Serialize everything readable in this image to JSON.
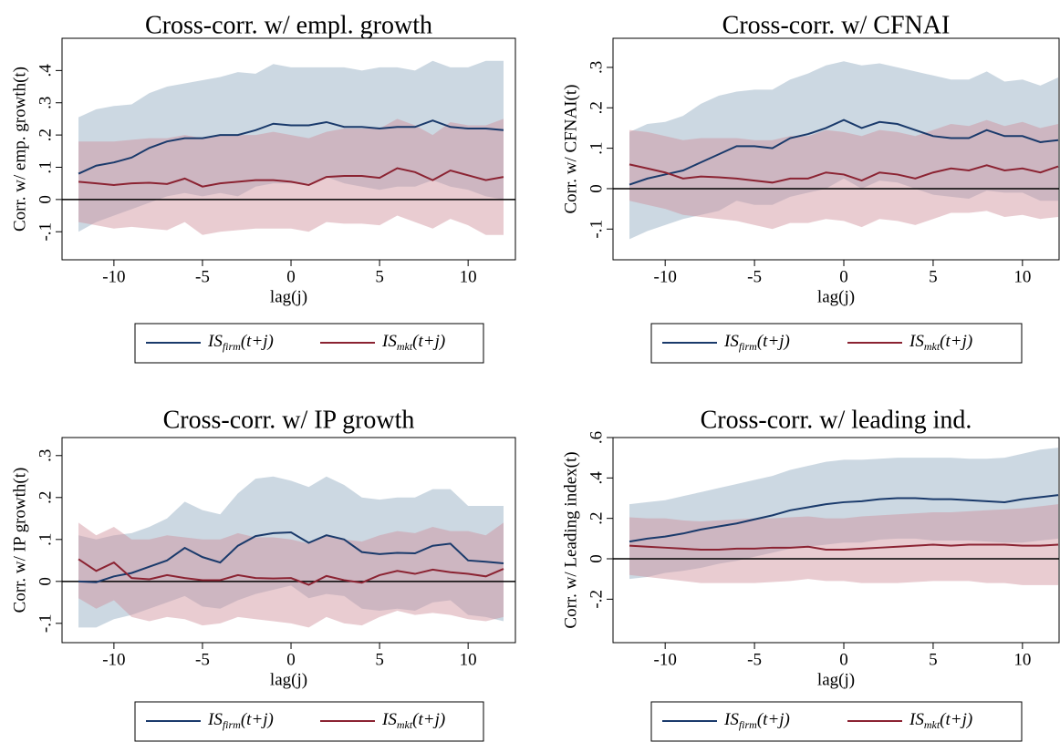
{
  "chart_data": [
    {
      "type": "line",
      "title": "Cross-corr. w/ empl. growth",
      "xlabel": "lag(j)",
      "ylabel": "Corr. w/ emp. growth(t)",
      "x": [
        -12,
        -11,
        -10,
        -9,
        -8,
        -7,
        -6,
        -5,
        -4,
        -3,
        -2,
        -1,
        0,
        1,
        2,
        3,
        4,
        5,
        6,
        7,
        8,
        9,
        10,
        11,
        12
      ],
      "xlim": [
        -12.93,
        12.67
      ],
      "xticks": [
        -10,
        -5,
        0,
        5,
        10
      ],
      "ylim": [
        -0.187,
        0.5
      ],
      "yticks": [
        {
          "value": -0.1,
          "label": "-.1"
        },
        0,
        {
          "value": 0.1,
          "label": ".1"
        },
        {
          "value": 0.2,
          "label": ".2"
        },
        {
          "value": 0.3,
          "label": ".3"
        },
        {
          "value": 0.4,
          "label": ".4"
        }
      ],
      "reference_line": 0,
      "series": [
        {
          "label_main": "IS",
          "label_sub": "firm",
          "label_arg": "(t+j)",
          "color": "#1a3a6b",
          "band_color": "#8ea8be",
          "values": [
            0.08,
            0.105,
            0.115,
            0.13,
            0.16,
            0.18,
            0.19,
            0.19,
            0.2,
            0.2,
            0.215,
            0.235,
            0.23,
            0.23,
            0.24,
            0.225,
            0.225,
            0.22,
            0.225,
            0.225,
            0.245,
            0.225,
            0.22,
            0.22,
            0.215
          ],
          "upper": [
            0.255,
            0.28,
            0.29,
            0.295,
            0.33,
            0.35,
            0.36,
            0.37,
            0.38,
            0.395,
            0.39,
            0.42,
            0.41,
            0.41,
            0.41,
            0.41,
            0.4,
            0.41,
            0.41,
            0.4,
            0.43,
            0.41,
            0.41,
            0.43,
            0.43
          ],
          "lower": [
            -0.1,
            -0.07,
            -0.05,
            -0.03,
            -0.01,
            0.01,
            0.02,
            0.01,
            0.02,
            0.01,
            0.04,
            0.05,
            0.05,
            0.05,
            0.07,
            0.05,
            0.04,
            0.03,
            0.04,
            0.04,
            0.06,
            0.04,
            0.03,
            0.01,
            0.0
          ]
        },
        {
          "label_main": "IS",
          "label_sub": "mkt",
          "label_arg": "(t+j)",
          "color": "#8b2332",
          "band_color": "#cf8f98",
          "values": [
            0.055,
            0.05,
            0.045,
            0.05,
            0.052,
            0.048,
            0.065,
            0.04,
            0.05,
            0.055,
            0.06,
            0.06,
            0.055,
            0.045,
            0.07,
            0.073,
            0.073,
            0.067,
            0.097,
            0.085,
            0.06,
            0.09,
            0.075,
            0.06,
            0.07
          ],
          "upper": [
            0.18,
            0.18,
            0.18,
            0.185,
            0.19,
            0.19,
            0.2,
            0.19,
            0.2,
            0.2,
            0.2,
            0.21,
            0.2,
            0.19,
            0.21,
            0.22,
            0.22,
            0.22,
            0.25,
            0.23,
            0.2,
            0.24,
            0.23,
            0.23,
            0.25
          ],
          "lower": [
            -0.07,
            -0.08,
            -0.09,
            -0.085,
            -0.09,
            -0.095,
            -0.07,
            -0.11,
            -0.1,
            -0.095,
            -0.09,
            -0.09,
            -0.09,
            -0.1,
            -0.07,
            -0.075,
            -0.075,
            -0.08,
            -0.05,
            -0.07,
            -0.09,
            -0.06,
            -0.08,
            -0.11,
            -0.11
          ]
        }
      ]
    },
    {
      "type": "line",
      "title": "Cross-corr. w/ CFNAI",
      "xlabel": "lag(j)",
      "ylabel": "Corr. w/ CFNAI(t)",
      "x": [
        -12,
        -11,
        -10,
        -9,
        -8,
        -7,
        -6,
        -5,
        -4,
        -3,
        -2,
        -1,
        0,
        1,
        2,
        3,
        4,
        5,
        6,
        7,
        8,
        9,
        10,
        11,
        12
      ],
      "xlim": [
        -12.92,
        12.05
      ],
      "xticks": [
        -10,
        -5,
        0,
        5,
        10
      ],
      "ylim": [
        -0.176,
        0.372
      ],
      "yticks": [
        {
          "value": -0.1,
          "label": "-.1"
        },
        0,
        {
          "value": 0.1,
          "label": ".1"
        },
        {
          "value": 0.2,
          "label": ".2"
        },
        {
          "value": 0.3,
          "label": ".3"
        }
      ],
      "reference_line": 0,
      "series": [
        {
          "label_main": "IS",
          "label_sub": "firm",
          "label_arg": "(t+j)",
          "color": "#1a3a6b",
          "band_color": "#8ea8be",
          "values": [
            0.01,
            0.025,
            0.035,
            0.045,
            0.065,
            0.085,
            0.105,
            0.105,
            0.1,
            0.125,
            0.135,
            0.15,
            0.17,
            0.15,
            0.165,
            0.16,
            0.145,
            0.13,
            0.125,
            0.125,
            0.145,
            0.13,
            0.13,
            0.115,
            0.12
          ],
          "upper": [
            0.14,
            0.16,
            0.165,
            0.18,
            0.21,
            0.23,
            0.24,
            0.245,
            0.245,
            0.27,
            0.285,
            0.305,
            0.315,
            0.305,
            0.31,
            0.3,
            0.29,
            0.28,
            0.27,
            0.27,
            0.29,
            0.265,
            0.27,
            0.255,
            0.275
          ],
          "lower": [
            -0.125,
            -0.105,
            -0.09,
            -0.075,
            -0.065,
            -0.055,
            -0.03,
            -0.04,
            -0.04,
            -0.02,
            -0.01,
            0.0,
            0.025,
            0.0,
            0.02,
            0.015,
            0.0,
            -0.015,
            -0.02,
            -0.025,
            -0.005,
            -0.01,
            -0.01,
            -0.03,
            -0.03
          ]
        },
        {
          "label_main": "IS",
          "label_sub": "mkt",
          "label_arg": "(t+j)",
          "color": "#8b2332",
          "band_color": "#cf8f98",
          "values": [
            0.06,
            0.05,
            0.04,
            0.025,
            0.03,
            0.028,
            0.025,
            0.02,
            0.015,
            0.025,
            0.025,
            0.04,
            0.035,
            0.02,
            0.04,
            0.035,
            0.025,
            0.04,
            0.05,
            0.045,
            0.058,
            0.045,
            0.05,
            0.04,
            0.055
          ],
          "upper": [
            0.145,
            0.14,
            0.13,
            0.12,
            0.125,
            0.125,
            0.125,
            0.12,
            0.12,
            0.13,
            0.13,
            0.145,
            0.14,
            0.13,
            0.145,
            0.14,
            0.13,
            0.145,
            0.16,
            0.155,
            0.17,
            0.155,
            0.165,
            0.15,
            0.16
          ],
          "lower": [
            -0.03,
            -0.04,
            -0.05,
            -0.065,
            -0.07,
            -0.075,
            -0.08,
            -0.09,
            -0.1,
            -0.085,
            -0.085,
            -0.075,
            -0.08,
            -0.095,
            -0.075,
            -0.08,
            -0.09,
            -0.075,
            -0.06,
            -0.06,
            -0.055,
            -0.07,
            -0.065,
            -0.075,
            -0.07
          ]
        }
      ]
    },
    {
      "type": "line",
      "title": "Cross-corr. w/ IP growth",
      "xlabel": "lag(j)",
      "ylabel": "Corr. w/ IP growth(t)",
      "x": [
        -12,
        -11,
        -10,
        -9,
        -8,
        -7,
        -6,
        -5,
        -4,
        -3,
        -2,
        -1,
        0,
        1,
        2,
        3,
        4,
        5,
        6,
        7,
        8,
        9,
        10,
        11,
        12
      ],
      "xlim": [
        -12.93,
        12.67
      ],
      "xticks": [
        -10,
        -5,
        0,
        5,
        10
      ],
      "ylim": [
        -0.146,
        0.343
      ],
      "yticks": [
        {
          "value": -0.1,
          "label": "-.1"
        },
        0,
        {
          "value": 0.1,
          "label": ".1"
        },
        {
          "value": 0.2,
          "label": ".2"
        },
        {
          "value": 0.3,
          "label": ".3"
        }
      ],
      "reference_line": 0,
      "series": [
        {
          "label_main": "IS",
          "label_sub": "firm",
          "label_arg": "(t+j)",
          "color": "#1a3a6b",
          "band_color": "#8ea8be",
          "values": [
            0,
            -0.002,
            0.012,
            0.02,
            0.035,
            0.05,
            0.08,
            0.058,
            0.045,
            0.085,
            0.108,
            0.115,
            0.117,
            0.092,
            0.11,
            0.1,
            0.07,
            0.065,
            0.068,
            0.067,
            0.085,
            0.09,
            0.05,
            0.047,
            0.043
          ],
          "upper": [
            0.11,
            0.1,
            0.11,
            0.115,
            0.13,
            0.15,
            0.19,
            0.17,
            0.16,
            0.21,
            0.245,
            0.25,
            0.24,
            0.225,
            0.25,
            0.23,
            0.2,
            0.195,
            0.2,
            0.2,
            0.22,
            0.22,
            0.18,
            0.18,
            0.18
          ],
          "lower": [
            -0.11,
            -0.11,
            -0.09,
            -0.08,
            -0.065,
            -0.05,
            -0.035,
            -0.06,
            -0.065,
            -0.045,
            -0.03,
            -0.02,
            -0.01,
            -0.04,
            -0.03,
            -0.035,
            -0.065,
            -0.07,
            -0.065,
            -0.07,
            -0.05,
            -0.045,
            -0.08,
            -0.085,
            -0.095
          ]
        },
        {
          "label_main": "IS",
          "label_sub": "mkt",
          "label_arg": "(t+j)",
          "color": "#8b2332",
          "band_color": "#cf8f98",
          "values": [
            0.053,
            0.025,
            0.045,
            0.008,
            0.005,
            0.015,
            0.008,
            0.003,
            0.003,
            0.015,
            0.008,
            0.007,
            0.008,
            -0.008,
            0.013,
            0.003,
            -0.003,
            0.015,
            0.025,
            0.018,
            0.028,
            0.022,
            0.018,
            0.012,
            0.03
          ],
          "upper": [
            0.14,
            0.11,
            0.13,
            0.1,
            0.1,
            0.11,
            0.105,
            0.1,
            0.1,
            0.115,
            0.105,
            0.105,
            0.1,
            0.09,
            0.11,
            0.1,
            0.095,
            0.11,
            0.12,
            0.115,
            0.13,
            0.12,
            0.12,
            0.11,
            0.14
          ],
          "lower": [
            -0.04,
            -0.065,
            -0.045,
            -0.085,
            -0.095,
            -0.085,
            -0.09,
            -0.105,
            -0.1,
            -0.085,
            -0.09,
            -0.095,
            -0.1,
            -0.11,
            -0.085,
            -0.1,
            -0.105,
            -0.085,
            -0.07,
            -0.08,
            -0.075,
            -0.08,
            -0.09,
            -0.095,
            -0.085
          ]
        }
      ]
    },
    {
      "type": "line",
      "title": "Cross-corr. w/ leading ind.",
      "xlabel": "lag(j)",
      "ylabel": "Corr. w/ Leading index(t)",
      "x": [
        -12,
        -11,
        -10,
        -9,
        -8,
        -7,
        -6,
        -5,
        -4,
        -3,
        -2,
        -1,
        0,
        1,
        2,
        3,
        4,
        5,
        6,
        7,
        8,
        9,
        10,
        11,
        12
      ],
      "xlim": [
        -12.92,
        12.05
      ],
      "xticks": [
        -10,
        -5,
        0,
        5,
        10
      ],
      "ylim": [
        -0.415,
        0.6
      ],
      "yticks": [
        {
          "value": -0.2,
          "label": "-.2"
        },
        0,
        {
          "value": 0.2,
          "label": ".2"
        },
        {
          "value": 0.4,
          "label": ".4"
        },
        {
          "value": 0.6,
          "label": ".6"
        }
      ],
      "reference_line": 0,
      "series": [
        {
          "label_main": "IS",
          "label_sub": "firm",
          "label_arg": "(t+j)",
          "color": "#1a3a6b",
          "band_color": "#8ea8be",
          "values": [
            0.085,
            0.1,
            0.11,
            0.125,
            0.145,
            0.16,
            0.175,
            0.195,
            0.215,
            0.24,
            0.255,
            0.27,
            0.28,
            0.285,
            0.295,
            0.3,
            0.3,
            0.295,
            0.295,
            0.29,
            0.285,
            0.28,
            0.295,
            0.305,
            0.315
          ],
          "upper": [
            0.27,
            0.28,
            0.29,
            0.31,
            0.33,
            0.35,
            0.37,
            0.39,
            0.41,
            0.44,
            0.46,
            0.48,
            0.49,
            0.49,
            0.495,
            0.5,
            0.5,
            0.5,
            0.5,
            0.495,
            0.495,
            0.5,
            0.52,
            0.54,
            0.55
          ],
          "lower": [
            -0.1,
            -0.09,
            -0.07,
            -0.06,
            -0.045,
            -0.025,
            -0.01,
            0.01,
            0.03,
            0.05,
            0.06,
            0.07,
            0.08,
            0.08,
            0.095,
            0.1,
            0.1,
            0.09,
            0.09,
            0.09,
            0.085,
            0.08,
            0.08,
            0.09,
            0.1
          ]
        },
        {
          "label_main": "IS",
          "label_sub": "mkt",
          "label_arg": "(t+j)",
          "color": "#8b2332",
          "band_color": "#cf8f98",
          "values": [
            0.065,
            0.06,
            0.055,
            0.05,
            0.045,
            0.045,
            0.05,
            0.05,
            0.055,
            0.055,
            0.06,
            0.045,
            0.045,
            0.05,
            0.055,
            0.06,
            0.065,
            0.07,
            0.065,
            0.07,
            0.07,
            0.07,
            0.065,
            0.065,
            0.07
          ],
          "upper": [
            0.205,
            0.2,
            0.2,
            0.19,
            0.185,
            0.19,
            0.195,
            0.2,
            0.2,
            0.205,
            0.21,
            0.2,
            0.2,
            0.21,
            0.215,
            0.22,
            0.225,
            0.23,
            0.23,
            0.235,
            0.24,
            0.245,
            0.25,
            0.26,
            0.27
          ],
          "lower": [
            -0.08,
            -0.09,
            -0.1,
            -0.11,
            -0.12,
            -0.12,
            -0.12,
            -0.12,
            -0.115,
            -0.11,
            -0.1,
            -0.11,
            -0.11,
            -0.12,
            -0.12,
            -0.12,
            -0.115,
            -0.11,
            -0.11,
            -0.11,
            -0.12,
            -0.12,
            -0.13,
            -0.13,
            -0.13
          ]
        }
      ]
    }
  ]
}
